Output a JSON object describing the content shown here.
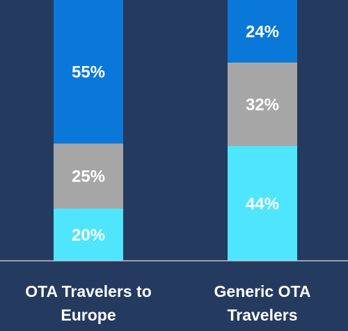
{
  "chart_data": {
    "type": "stacked_bar",
    "categories": [
      "OTA Travelers to Europe",
      "Generic OTA Travelers"
    ],
    "series": [
      {
        "color": "#4fe5fd",
        "values": [
          20,
          44
        ],
        "value_labels": [
          "20%",
          "44%"
        ]
      },
      {
        "color": "#a6a6a6",
        "values": [
          25,
          32
        ],
        "value_labels": [
          "25%",
          "32%"
        ]
      },
      {
        "color": "#0a78d8",
        "values": [
          55,
          24
        ],
        "value_labels": [
          "55%",
          "24%"
        ]
      }
    ],
    "ylim": [
      0,
      100
    ]
  }
}
